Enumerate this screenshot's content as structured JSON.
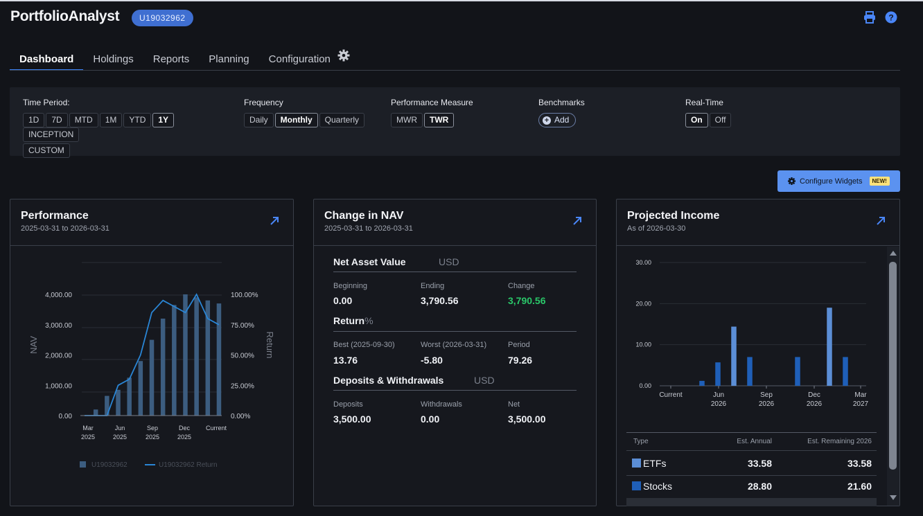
{
  "header": {
    "app_title": "PortfolioAnalyst",
    "account_id": "U19032962",
    "print_icon": "print-icon",
    "help_icon": "help-icon"
  },
  "tabs": [
    {
      "label": "Dashboard",
      "active": true
    },
    {
      "label": "Holdings",
      "active": false
    },
    {
      "label": "Reports",
      "active": false
    },
    {
      "label": "Planning",
      "active": false
    },
    {
      "label": "Configuration",
      "active": false
    }
  ],
  "filters": {
    "time_period": {
      "label": "Time Period:",
      "options": [
        "1D",
        "7D",
        "MTD",
        "1M",
        "YTD",
        "1Y",
        "INCEPTION",
        "CUSTOM"
      ],
      "selected": "1Y"
    },
    "frequency": {
      "label": "Frequency",
      "options": [
        "Daily",
        "Monthly",
        "Quarterly"
      ],
      "selected": "Monthly"
    },
    "performance_measure": {
      "label": "Performance Measure",
      "options": [
        "MWR",
        "TWR"
      ],
      "selected": "TWR"
    },
    "benchmarks": {
      "label": "Benchmarks",
      "add_label": "Add"
    },
    "real_time": {
      "label": "Real-Time",
      "options": [
        "On",
        "Off"
      ],
      "selected": "On"
    }
  },
  "configure_widgets": {
    "label": "Configure Widgets",
    "badge": "NEW!"
  },
  "performance": {
    "title": "Performance",
    "range": "2025-03-31 to 2026-03-31",
    "legend": {
      "nav": "U19032962",
      "return": "U19032962 Return"
    }
  },
  "change_nav": {
    "title": "Change in NAV",
    "range": "2025-03-31 to 2026-03-31",
    "nav_section": {
      "heading": "Net Asset Value",
      "unit": "USD",
      "items": [
        {
          "label": "Beginning",
          "value": "0.00"
        },
        {
          "label": "Ending",
          "value": "3,790.56"
        },
        {
          "label": "Change",
          "value": "3,790.56"
        }
      ]
    },
    "return_section": {
      "heading": "Return",
      "unit": "%",
      "items": [
        {
          "label": "Best (2025-09-30)",
          "value": "13.76"
        },
        {
          "label": "Worst (2026-03-31)",
          "value": "-5.80"
        },
        {
          "label": "Period",
          "value": "79.26"
        }
      ]
    },
    "deposits_section": {
      "heading": "Deposits & Withdrawals",
      "unit": "USD",
      "items": [
        {
          "label": "Deposits",
          "value": "3,500.00"
        },
        {
          "label": "Withdrawals",
          "value": "0.00"
        },
        {
          "label": "Net",
          "value": "3,500.00"
        }
      ]
    }
  },
  "projected_income": {
    "title": "Projected Income",
    "as_of": "As of 2026-03-30",
    "table": {
      "headers": [
        "Type",
        "Est. Annual",
        "Est. Remaining 2026"
      ],
      "rows": [
        {
          "type": "ETFs",
          "annual": "33.58",
          "remaining": "33.58",
          "color": "#5b8ed6"
        },
        {
          "type": "Stocks",
          "annual": "28.80",
          "remaining": "21.60",
          "color": "#1f5fb8"
        }
      ]
    }
  },
  "chart_data": [
    {
      "type": "bar",
      "title": "Performance",
      "ylabel": "NAV",
      "y2label": "Return",
      "ylim": [
        0,
        4000
      ],
      "y2lim": [
        0,
        100
      ],
      "yticks": [
        "0.00",
        "1,000.00",
        "2,000.00",
        "3,000.00",
        "4,000.00"
      ],
      "y2ticks": [
        "0.00%",
        "25.00%",
        "50.00%",
        "75.00%",
        "100.00%"
      ],
      "xticks": [
        [
          "Mar",
          "2025"
        ],
        [
          "Jun",
          "2025"
        ],
        [
          "Sep",
          "2025"
        ],
        [
          "Dec",
          "2025"
        ],
        [
          "Current",
          ""
        ]
      ],
      "series": [
        {
          "name": "U19032962",
          "type": "bar",
          "values": [
            0,
            200,
            650,
            850,
            1250,
            1800,
            2500,
            3200,
            3650,
            4000,
            3900,
            3800,
            3700
          ]
        },
        {
          "name": "U19032962 Return",
          "type": "line",
          "values": [
            0,
            0,
            0,
            25,
            30,
            50,
            85,
            95,
            90,
            85,
            100,
            80,
            75
          ]
        }
      ],
      "grid": true,
      "legend": "bottom"
    },
    {
      "type": "bar",
      "title": "Projected Income",
      "ylim": [
        0,
        30
      ],
      "yticks": [
        "0.00",
        "10.00",
        "20.00",
        "30.00"
      ],
      "xticks": [
        [
          "Current",
          ""
        ],
        [
          "Jun",
          "2026"
        ],
        [
          "Sep",
          "2026"
        ],
        [
          "Dec",
          "2026"
        ],
        [
          "Mar",
          "2027"
        ]
      ],
      "series": [
        {
          "name": "ETFs",
          "values": [
            0,
            0,
            0,
            14.4,
            0,
            0,
            0,
            0,
            0,
            19,
            0,
            0
          ]
        },
        {
          "name": "Stocks",
          "values": [
            0,
            1.2,
            5.7,
            0,
            7,
            0,
            0,
            7,
            0,
            0,
            7,
            0
          ]
        }
      ],
      "grid": true
    }
  ]
}
